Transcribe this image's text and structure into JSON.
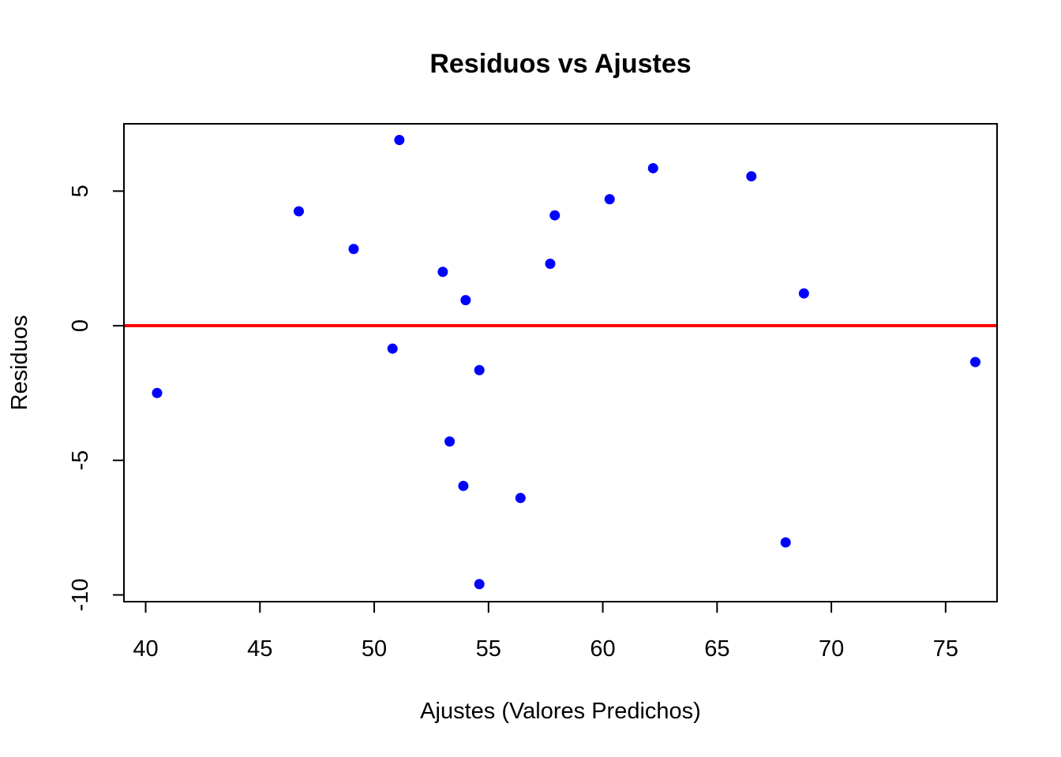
{
  "chart_data": {
    "type": "scatter",
    "title": "Residuos vs Ajustes",
    "xlabel": "Ajustes (Valores Predichos)",
    "ylabel": "Residuos",
    "xlim": [
      39.05,
      77.25
    ],
    "ylim": [
      -10.25,
      7.5
    ],
    "xticks": [
      40,
      45,
      50,
      55,
      60,
      65,
      70,
      75
    ],
    "yticks": [
      -10,
      -5,
      0,
      5
    ],
    "xtick_labels": [
      "40",
      "45",
      "50",
      "55",
      "60",
      "65",
      "70",
      "75"
    ],
    "ytick_labels": [
      "-10",
      "-5",
      "0",
      "5"
    ],
    "grid": false,
    "point_color": "#0000ff",
    "reference_line": {
      "y": 0,
      "color": "#ff0000"
    },
    "points": [
      {
        "x": 40.5,
        "y": -2.5
      },
      {
        "x": 46.7,
        "y": 4.25
      },
      {
        "x": 49.1,
        "y": 2.85
      },
      {
        "x": 50.8,
        "y": -0.85
      },
      {
        "x": 51.1,
        "y": 6.9
      },
      {
        "x": 53.0,
        "y": 2.0
      },
      {
        "x": 53.3,
        "y": -4.3
      },
      {
        "x": 53.9,
        "y": -5.95
      },
      {
        "x": 54.0,
        "y": 0.95
      },
      {
        "x": 54.6,
        "y": -1.65
      },
      {
        "x": 54.6,
        "y": -9.6
      },
      {
        "x": 56.4,
        "y": -6.4
      },
      {
        "x": 57.7,
        "y": 2.3
      },
      {
        "x": 57.9,
        "y": 4.1
      },
      {
        "x": 60.3,
        "y": 4.7
      },
      {
        "x": 62.2,
        "y": 5.85
      },
      {
        "x": 66.5,
        "y": 5.55
      },
      {
        "x": 68.0,
        "y": -8.05
      },
      {
        "x": 68.8,
        "y": 1.2
      },
      {
        "x": 76.3,
        "y": -1.35
      }
    ]
  }
}
